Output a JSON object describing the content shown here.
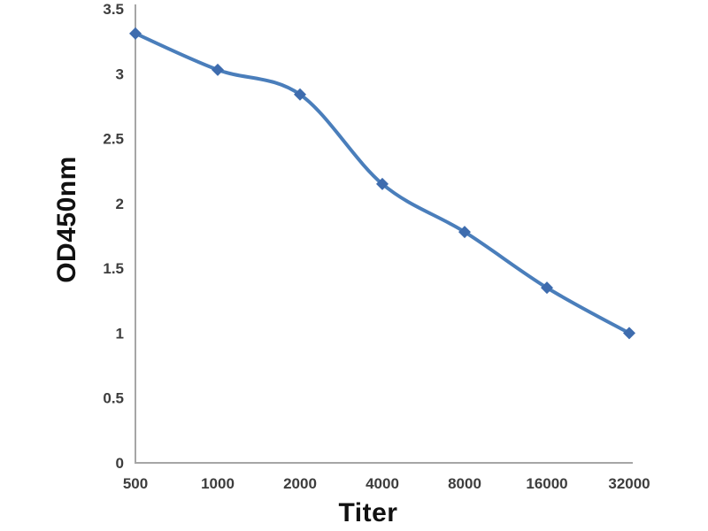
{
  "chart_data": {
    "type": "line",
    "title": "",
    "xlabel": "Titer",
    "ylabel": "OD450nm",
    "categories": [
      "500",
      "1000",
      "2000",
      "4000",
      "8000",
      "16000",
      "32000"
    ],
    "series": [
      {
        "name": "OD450nm",
        "values": [
          3.31,
          3.03,
          2.84,
          2.15,
          1.78,
          1.35,
          1.0
        ]
      }
    ],
    "ylim": [
      0,
      3.5
    ],
    "yticks": [
      0,
      0.5,
      1,
      1.5,
      2,
      2.5,
      3,
      3.5
    ],
    "grid": false,
    "legend": "none",
    "marker": "diamond",
    "smooth": true,
    "colors": {
      "line": "#4a7ebb",
      "marker": "#3e6cae",
      "axis": "#a6a6a6",
      "tick_text": "#3d3d3d",
      "title_text": "#111111"
    }
  }
}
